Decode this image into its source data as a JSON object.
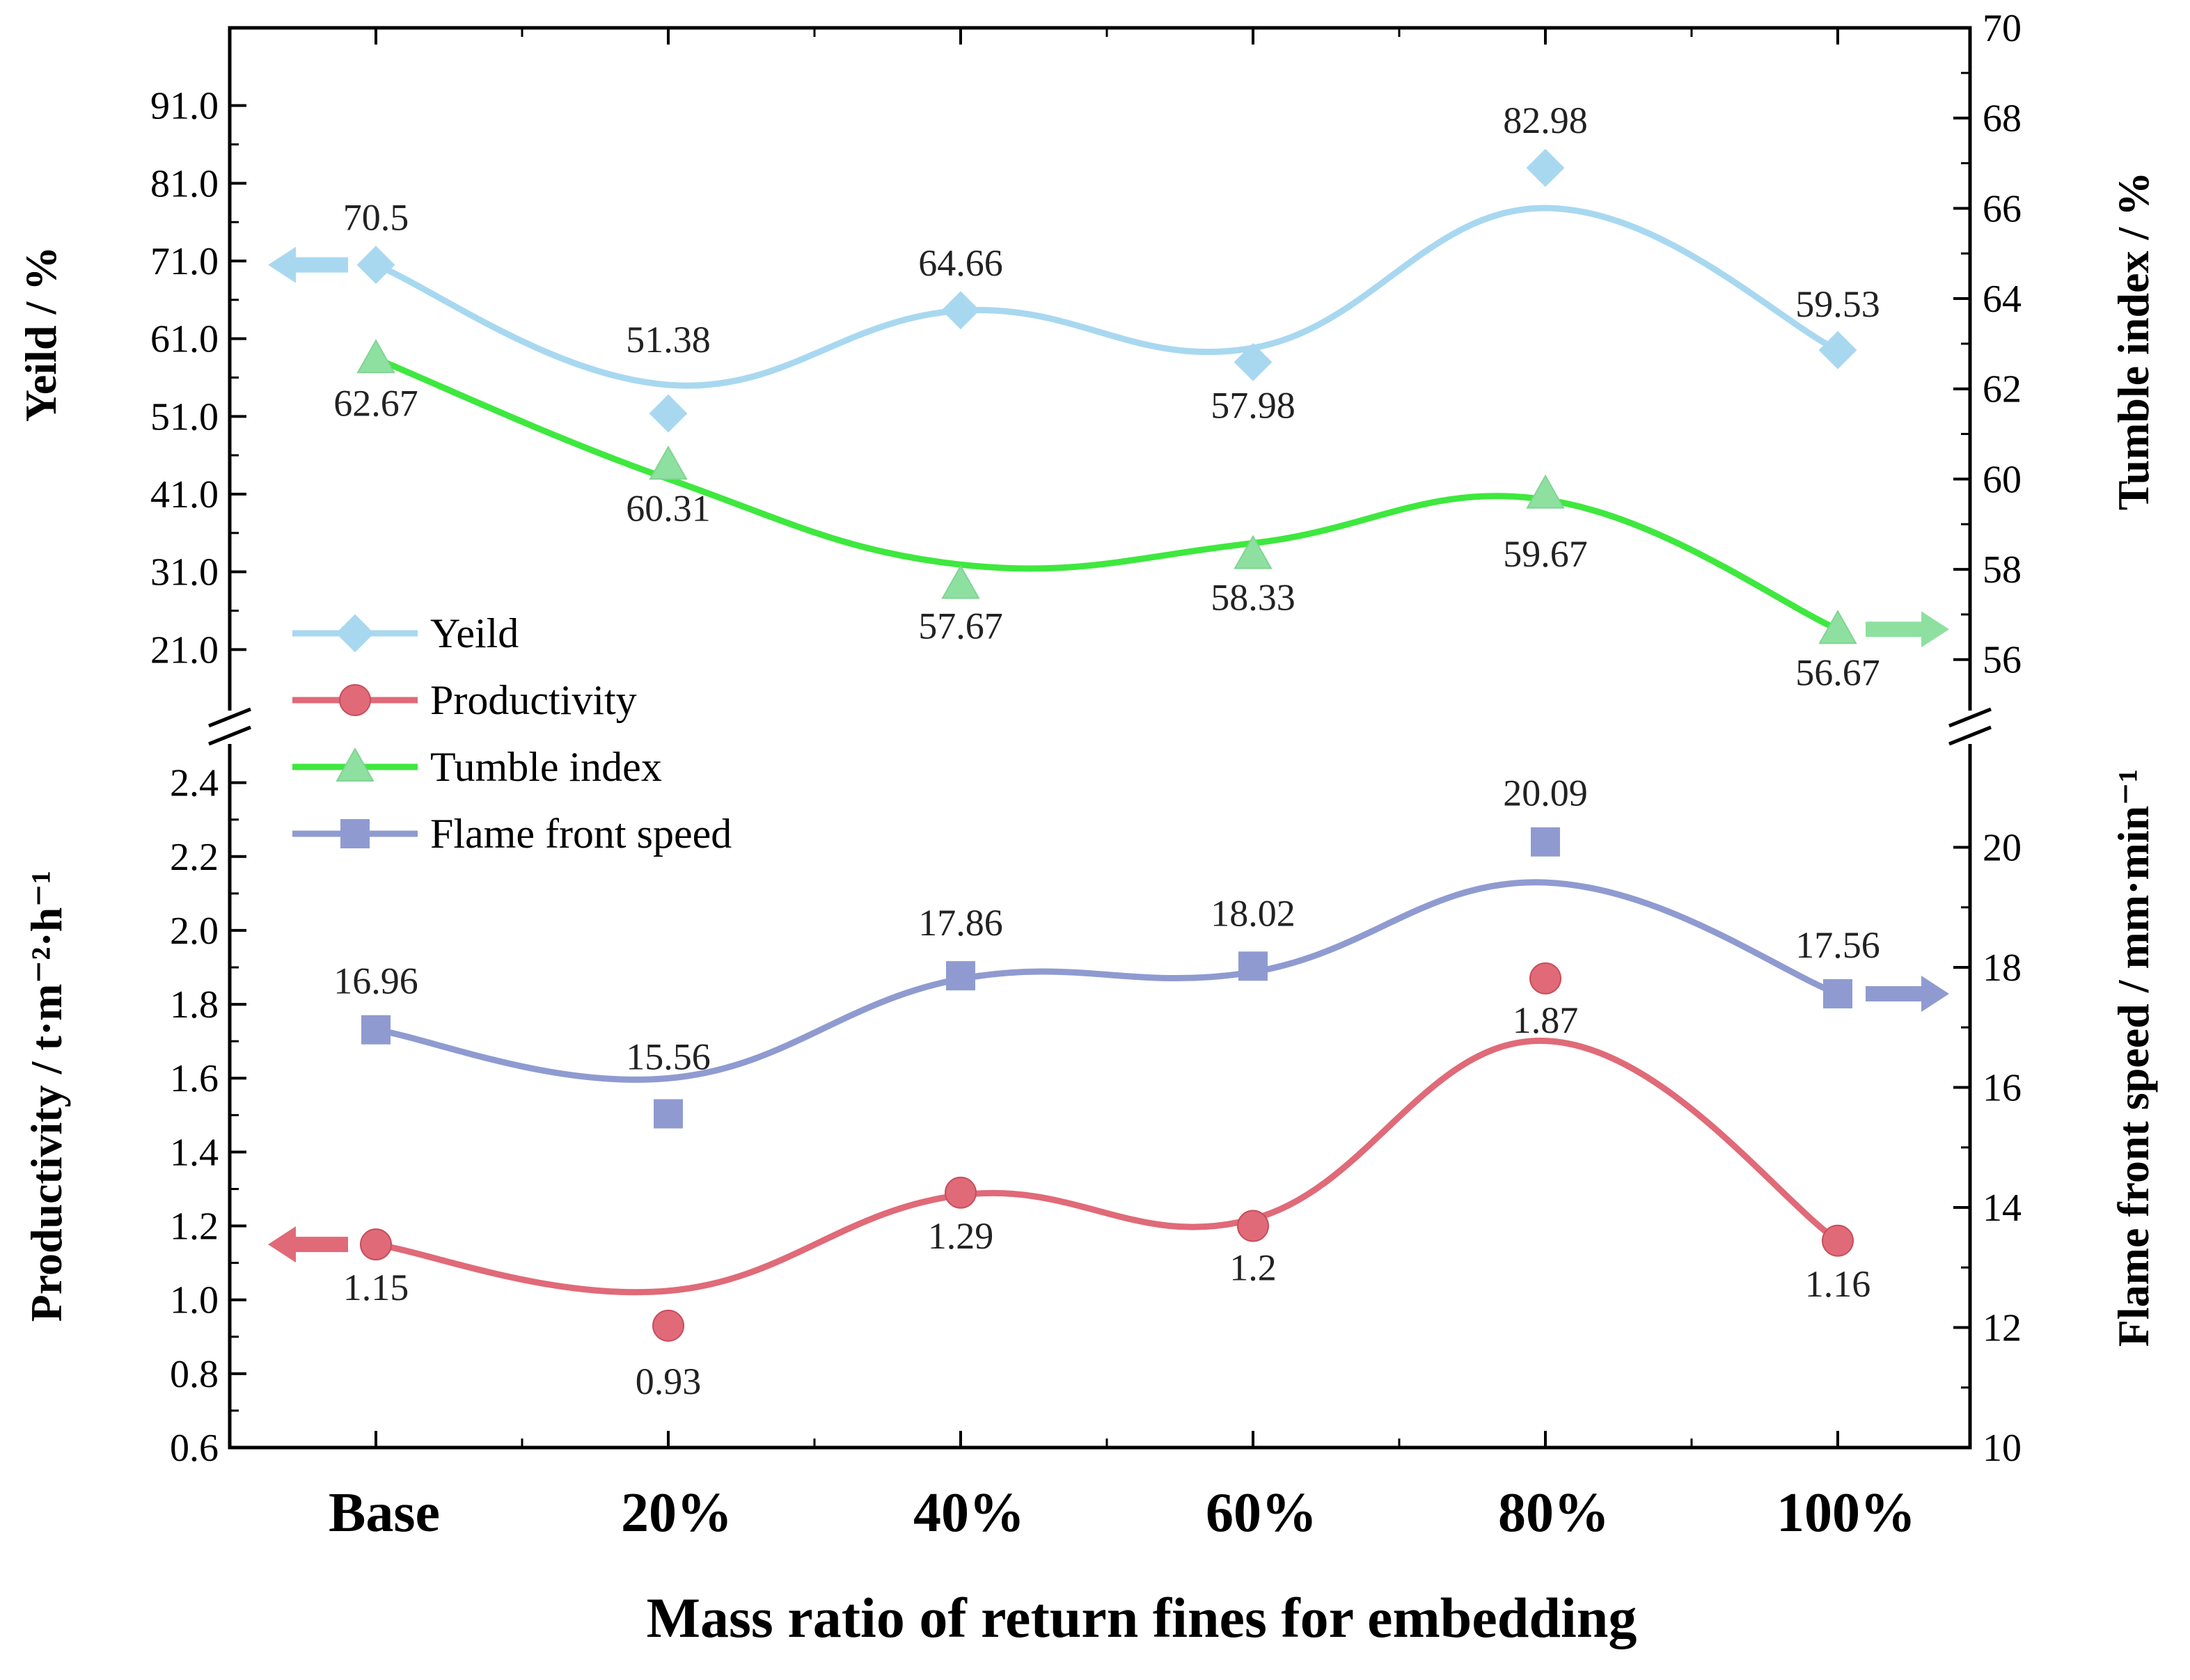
{
  "chart_data": {
    "type": "line",
    "xlabel": "Mass ratio of return fines for embedding",
    "categories": [
      "Base",
      "20%",
      "40%",
      "60%",
      "80%",
      "100%"
    ],
    "top_panel": {
      "left_axis": {
        "label": "Yeild / %",
        "ylim": [
          11,
          101
        ],
        "ticks": [
          "21.0",
          "31.0",
          "41.0",
          "51.0",
          "61.0",
          "71.0",
          "81.0",
          "91.0"
        ]
      },
      "right_axis": {
        "label": "Tumble index / %",
        "ylim": [
          54.5,
          70
        ],
        "ticks": [
          "56",
          "58",
          "60",
          "62",
          "64",
          "66",
          "68",
          "70"
        ]
      }
    },
    "bottom_panel": {
      "left_axis": {
        "label": "Productivity / t·m⁻²·h⁻¹",
        "ylim": [
          0.6,
          2.55
        ],
        "ticks": [
          "0.6",
          "0.8",
          "1.0",
          "1.2",
          "1.4",
          "1.6",
          "1.8",
          "2.0",
          "2.2",
          "2.4"
        ]
      },
      "right_axis": {
        "label": "Flame front speed / mm·min⁻¹",
        "ylim": [
          10,
          22
        ],
        "ticks": [
          "10",
          "12",
          "14",
          "16",
          "18",
          "20"
        ]
      }
    },
    "series": [
      {
        "name": "Yeild",
        "panel": "top",
        "axis": "left",
        "marker": "diamond",
        "color": "#a8d8f0",
        "values": [
          70.5,
          51.38,
          64.66,
          57.98,
          82.98,
          59.53
        ],
        "labels": [
          "70.5",
          "51.38",
          "64.66",
          "57.98",
          "82.98",
          "59.53"
        ]
      },
      {
        "name": "Productivity",
        "panel": "bottom",
        "axis": "left",
        "marker": "circle",
        "color": "#e06a78",
        "values": [
          1.15,
          0.93,
          1.29,
          1.2,
          1.87,
          1.16
        ],
        "labels": [
          "1.15",
          "0.93",
          "1.29",
          "1.2",
          "1.87",
          "1.16"
        ]
      },
      {
        "name": "Tumble index",
        "panel": "top",
        "axis": "right",
        "marker": "triangle",
        "color": "#3ee83e",
        "values": [
          62.67,
          60.31,
          57.67,
          58.33,
          59.67,
          56.67
        ],
        "labels": [
          "62.67",
          "60.31",
          "57.67",
          "58.33",
          "59.67",
          "56.67"
        ]
      },
      {
        "name": "Flame front speed",
        "panel": "bottom",
        "axis": "right",
        "marker": "square",
        "color": "#8f9bd0",
        "values": [
          16.96,
          15.56,
          17.86,
          18.02,
          20.09,
          17.56
        ],
        "labels": [
          "16.96",
          "15.56",
          "17.86",
          "18.02",
          "20.09",
          "17.56"
        ]
      }
    ],
    "legend": {
      "position": "middle-left",
      "items": [
        "Yeild",
        "Productivity",
        "Tumble index",
        "Flame front speed"
      ]
    }
  }
}
